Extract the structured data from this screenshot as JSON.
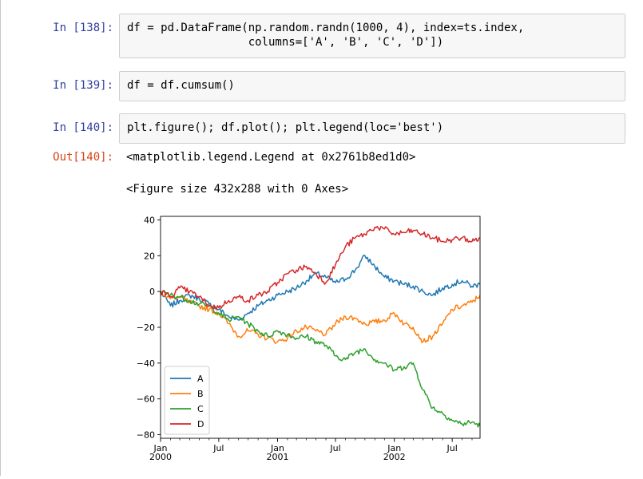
{
  "cells": [
    {
      "prompt": "In [138]:",
      "lines": [
        "df = pd.DataFrame(np.random.randn(1000, 4), index=ts.index,",
        "                  columns=['A', 'B', 'C', 'D'])"
      ]
    },
    {
      "prompt": "In [139]:",
      "lines": [
        "df = df.cumsum()"
      ]
    },
    {
      "prompt": "In [140]:",
      "lines": [
        "plt.figure(); df.plot(); plt.legend(loc='best')"
      ]
    }
  ],
  "output": {
    "prompt": "Out[140]:",
    "repr": "<matplotlib.legend.Legend at 0x2761b8ed1d0>",
    "figure_text": "<Figure size 432x288 with 0 Axes>"
  },
  "chart_data": {
    "type": "line",
    "title": "",
    "xlabel": "",
    "ylabel": "",
    "x_ticks": [
      {
        "label": "Jan\n2000",
        "date": "2000-01-01"
      },
      {
        "label": "Jul",
        "date": "2000-07-01"
      },
      {
        "label": "Jan\n2001",
        "date": "2001-01-01"
      },
      {
        "label": "Jul",
        "date": "2001-07-01"
      },
      {
        "label": "Jan\n2002",
        "date": "2002-01-01"
      },
      {
        "label": "Jul",
        "date": "2002-07-01"
      }
    ],
    "y_ticks": [
      40,
      20,
      0,
      -20,
      -40,
      -60,
      -80
    ],
    "xlim": [
      "2000-01-01",
      "2002-09-26"
    ],
    "ylim": [
      -82,
      42
    ],
    "grid": false,
    "legend_position": "lower-left",
    "x": [
      "2000-01-01",
      "2000-02-01",
      "2000-03-01",
      "2000-04-01",
      "2000-05-01",
      "2000-06-01",
      "2000-07-01",
      "2000-08-01",
      "2000-09-01",
      "2000-10-01",
      "2000-11-01",
      "2000-12-01",
      "2001-01-01",
      "2001-02-01",
      "2001-03-01",
      "2001-04-01",
      "2001-05-01",
      "2001-06-01",
      "2001-07-01",
      "2001-08-01",
      "2001-09-01",
      "2001-10-01",
      "2001-11-01",
      "2001-12-01",
      "2002-01-01",
      "2002-02-01",
      "2002-03-01",
      "2002-04-01",
      "2002-05-01",
      "2002-06-01",
      "2002-07-01",
      "2002-08-01",
      "2002-09-01",
      "2002-09-26"
    ],
    "series": [
      {
        "name": "A",
        "color": "#1f77b4",
        "values": [
          0,
          -8,
          -5,
          -2,
          -4,
          -7,
          -10,
          -14,
          -16,
          -12,
          -8,
          -5,
          -2,
          0,
          2,
          6,
          10,
          8,
          5,
          7,
          12,
          20,
          14,
          8,
          6,
          4,
          3,
          0,
          -2,
          2,
          4,
          6,
          3,
          4
        ]
      },
      {
        "name": "B",
        "color": "#ff7f0e",
        "values": [
          0,
          -4,
          -3,
          -6,
          -8,
          -10,
          -12,
          -18,
          -25,
          -22,
          -24,
          -26,
          -28,
          -26,
          -22,
          -20,
          -22,
          -24,
          -18,
          -14,
          -15,
          -18,
          -17,
          -16,
          -12,
          -18,
          -20,
          -28,
          -25,
          -18,
          -10,
          -8,
          -6,
          -2
        ]
      },
      {
        "name": "C",
        "color": "#2ca02c",
        "values": [
          0,
          -2,
          -3,
          -5,
          -7,
          -8,
          -12,
          -16,
          -14,
          -18,
          -22,
          -25,
          -22,
          -24,
          -26,
          -25,
          -28,
          -30,
          -36,
          -38,
          -34,
          -32,
          -38,
          -40,
          -44,
          -42,
          -40,
          -55,
          -65,
          -68,
          -72,
          -74,
          -73,
          -75
        ]
      },
      {
        "name": "D",
        "color": "#d62728",
        "values": [
          0,
          -3,
          2,
          0,
          -3,
          -8,
          -9,
          -5,
          -3,
          -5,
          -2,
          0,
          5,
          10,
          12,
          14,
          10,
          5,
          15,
          25,
          30,
          32,
          36,
          35,
          32,
          33,
          34,
          32,
          30,
          28,
          29,
          30,
          28,
          30
        ]
      }
    ]
  }
}
